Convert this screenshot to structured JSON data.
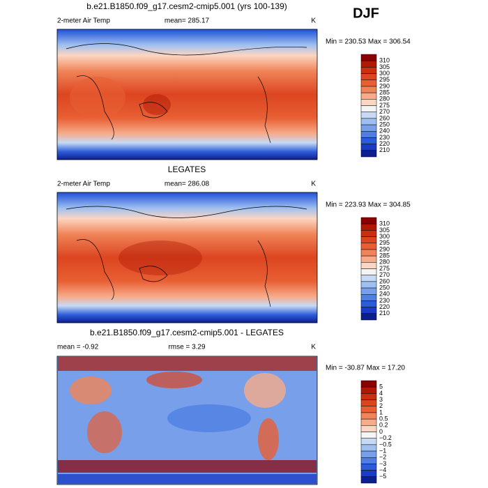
{
  "season": "DJF",
  "colors": [
    "#8b0000",
    "#b01a05",
    "#c8300f",
    "#dc4520",
    "#e85f33",
    "#f08458",
    "#f7ab8a",
    "#fcd6c2",
    "#f4f4f4",
    "#c6daf5",
    "#9ebff0",
    "#779fea",
    "#4f7fe4",
    "#2b5cd9",
    "#1a3cc4",
    "#0d1f8f"
  ],
  "panels": [
    {
      "title": "b.e21.B1850.f09_g17.cesm2-cmip5.001 (yrs 100-139)",
      "left_label": "2-meter Air Temp",
      "center_label": "mean= 285.17",
      "units": "K",
      "stats": "Min = 230.53 Max = 306.54",
      "colorbar": [
        "310",
        "305",
        "300",
        "295",
        "290",
        "285",
        "280",
        "275",
        "270",
        "260",
        "250",
        "240",
        "230",
        "220",
        "210"
      ]
    },
    {
      "title": "LEGATES",
      "left_label": "2-meter Air Temp",
      "center_label": "mean= 286.08",
      "units": "K",
      "stats": "Min = 223.93 Max = 304.85",
      "colorbar": [
        "310",
        "305",
        "300",
        "295",
        "290",
        "285",
        "280",
        "275",
        "270",
        "260",
        "250",
        "240",
        "230",
        "220",
        "210"
      ]
    },
    {
      "title": "b.e21.B1850.f09_g17.cesm2-cmip5.001 - LEGATES",
      "left_label": "mean =  -0.92",
      "center_label": "rmse =    3.29",
      "units": "K",
      "stats": "Min = -30.87 Max =  17.20",
      "colorbar": [
        "5",
        "4",
        "3",
        "2",
        "1",
        "0.5",
        "0.2",
        "0",
        "−0.2",
        "−0.5",
        "−1",
        "−2",
        "−3",
        "−4",
        "−5"
      ]
    }
  ]
}
